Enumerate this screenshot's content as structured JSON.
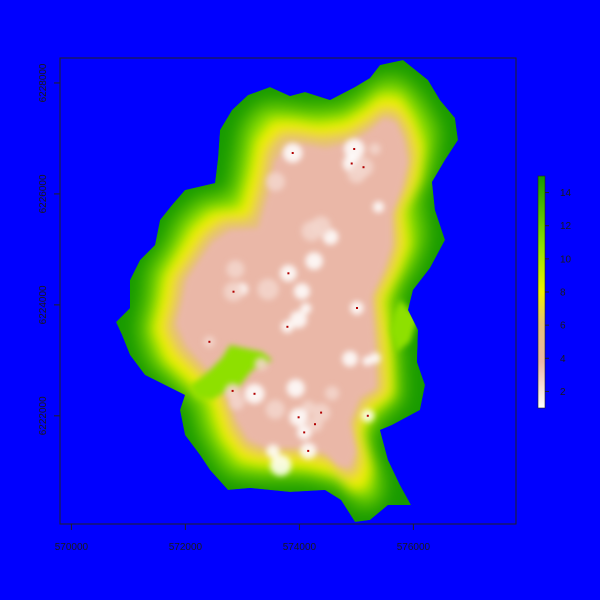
{
  "chart_data": {
    "type": "heatmap",
    "title": "",
    "xlabel": "",
    "ylabel": "",
    "xlim": [
      569800,
      577800
    ],
    "ylim": [
      6220050,
      6228450
    ],
    "x_ticks": [
      "570000",
      "572000",
      "574000",
      "576000"
    ],
    "y_ticks": [
      "6222000",
      "6224000",
      "6226000",
      "6228000"
    ],
    "legend": {
      "placement": "right",
      "range": [
        1,
        15
      ],
      "ticks": [
        "2",
        "4",
        "6",
        "8",
        "10",
        "12",
        "14"
      ]
    },
    "colors": {
      "background": "#0000ff",
      "low": "#ffffff",
      "mid_low": "#eab7a7",
      "mid": "#e6c07a",
      "yellow": "#f0f000",
      "green_light": "#8ee000",
      "green_dark": "#179a00",
      "cell_marks": "#b00000"
    }
  }
}
